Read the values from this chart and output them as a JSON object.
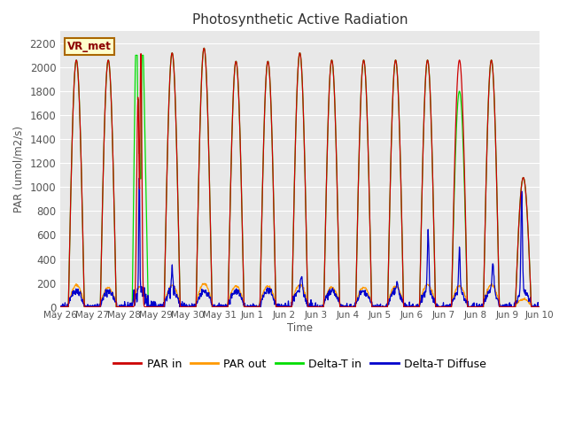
{
  "title": "Photosynthetic Active Radiation",
  "ylabel": "PAR (umol/m2/s)",
  "xlabel": "Time",
  "box_label": "VR_met",
  "ylim": [
    0,
    2300
  ],
  "colors": {
    "PAR in": "#cc0000",
    "PAR out": "#ff9900",
    "Delta-T in": "#00dd00",
    "Delta-T Diffuse": "#0000cc"
  },
  "legend_labels": [
    "PAR in",
    "PAR out",
    "Delta-T in",
    "Delta-T Diffuse"
  ],
  "background_color": "#ffffff",
  "plot_background": "#e8e8e8",
  "tick_labels": [
    "May 26",
    "May 27",
    "May 28",
    "May 29",
    "May 30",
    "May 31",
    "Jun 1",
    "Jun 2",
    "Jun 3",
    "Jun 4",
    "Jun 5",
    "Jun 6",
    "Jun 7",
    "Jun 8",
    "Jun 9",
    "Jun 10"
  ],
  "yticks": [
    0,
    200,
    400,
    600,
    800,
    1000,
    1200,
    1400,
    1600,
    1800,
    2000,
    2200
  ]
}
